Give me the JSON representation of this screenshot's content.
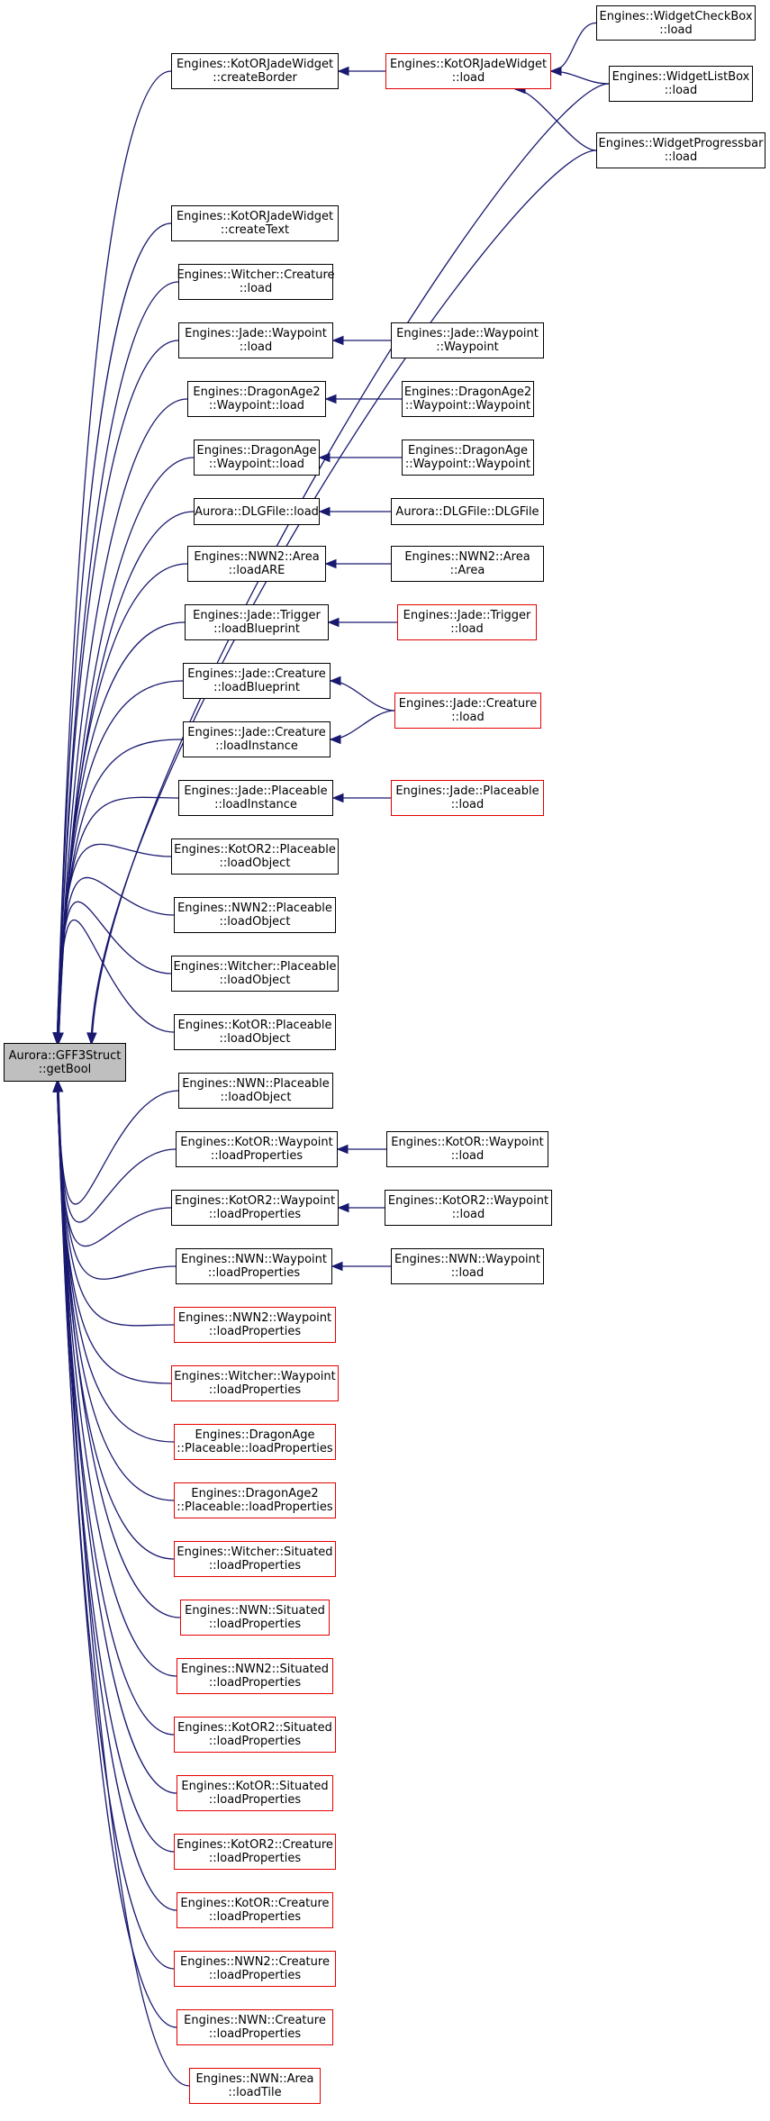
{
  "graph": {
    "root": {
      "id": "root",
      "lines": [
        "Aurora::GFF3Struct",
        "::getBool"
      ],
      "border": "black"
    },
    "nodes": [
      {
        "id": "kcb",
        "lines": [
          "Engines::KotORJadeWidget",
          "::createBorder"
        ],
        "border": "black"
      },
      {
        "id": "kl",
        "lines": [
          "Engines::KotORJadeWidget",
          "::load"
        ],
        "border": "red"
      },
      {
        "id": "wcb",
        "lines": [
          "Engines::WidgetCheckBox",
          "::load"
        ],
        "border": "black"
      },
      {
        "id": "wlb",
        "lines": [
          "Engines::WidgetListBox",
          "::load"
        ],
        "border": "black"
      },
      {
        "id": "wpb",
        "lines": [
          "Engines::WidgetProgressbar",
          "::load"
        ],
        "border": "black"
      },
      {
        "id": "kct",
        "lines": [
          "Engines::KotORJadeWidget",
          "::createText"
        ],
        "border": "black"
      },
      {
        "id": "wcl",
        "lines": [
          "Engines::Witcher::Creature",
          "::load"
        ],
        "border": "black"
      },
      {
        "id": "jwl",
        "lines": [
          "Engines::Jade::Waypoint",
          "::load"
        ],
        "border": "black"
      },
      {
        "id": "jww",
        "lines": [
          "Engines::Jade::Waypoint",
          "::Waypoint"
        ],
        "border": "black"
      },
      {
        "id": "d2wl",
        "lines": [
          "Engines::DragonAge2",
          "::Waypoint::load"
        ],
        "border": "black"
      },
      {
        "id": "d2ww",
        "lines": [
          "Engines::DragonAge2",
          "::Waypoint::Waypoint"
        ],
        "border": "black"
      },
      {
        "id": "dwl",
        "lines": [
          "Engines::DragonAge",
          "::Waypoint::load"
        ],
        "border": "black"
      },
      {
        "id": "dww",
        "lines": [
          "Engines::DragonAge",
          "::Waypoint::Waypoint"
        ],
        "border": "black"
      },
      {
        "id": "dlgl",
        "lines": [
          "Aurora::DLGFile::load"
        ],
        "border": "black"
      },
      {
        "id": "dlgd",
        "lines": [
          "Aurora::DLGFile::DLGFile"
        ],
        "border": "black"
      },
      {
        "id": "n2al",
        "lines": [
          "Engines::NWN2::Area",
          "::loadARE"
        ],
        "border": "black"
      },
      {
        "id": "n2aa",
        "lines": [
          "Engines::NWN2::Area",
          "::Area"
        ],
        "border": "black"
      },
      {
        "id": "jtb",
        "lines": [
          "Engines::Jade::Trigger",
          "::loadBlueprint"
        ],
        "border": "black"
      },
      {
        "id": "jtl",
        "lines": [
          "Engines::Jade::Trigger",
          "::load"
        ],
        "border": "red"
      },
      {
        "id": "jcb",
        "lines": [
          "Engines::Jade::Creature",
          "::loadBlueprint"
        ],
        "border": "black"
      },
      {
        "id": "jcl",
        "lines": [
          "Engines::Jade::Creature",
          "::load"
        ],
        "border": "red"
      },
      {
        "id": "jci",
        "lines": [
          "Engines::Jade::Creature",
          "::loadInstance"
        ],
        "border": "black"
      },
      {
        "id": "jpi",
        "lines": [
          "Engines::Jade::Placeable",
          "::loadInstance"
        ],
        "border": "black"
      },
      {
        "id": "jpl",
        "lines": [
          "Engines::Jade::Placeable",
          "::load"
        ],
        "border": "red"
      },
      {
        "id": "k2po",
        "lines": [
          "Engines::KotOR2::Placeable",
          "::loadObject"
        ],
        "border": "black"
      },
      {
        "id": "n2po",
        "lines": [
          "Engines::NWN2::Placeable",
          "::loadObject"
        ],
        "border": "black"
      },
      {
        "id": "wpo",
        "lines": [
          "Engines::Witcher::Placeable",
          "::loadObject"
        ],
        "border": "black"
      },
      {
        "id": "kpo",
        "lines": [
          "Engines::KotOR::Placeable",
          "::loadObject"
        ],
        "border": "black"
      },
      {
        "id": "npo",
        "lines": [
          "Engines::NWN::Placeable",
          "::loadObject"
        ],
        "border": "black"
      },
      {
        "id": "kwp",
        "lines": [
          "Engines::KotOR::Waypoint",
          "::loadProperties"
        ],
        "border": "black"
      },
      {
        "id": "kwl",
        "lines": [
          "Engines::KotOR::Waypoint",
          "::load"
        ],
        "border": "black"
      },
      {
        "id": "k2wp",
        "lines": [
          "Engines::KotOR2::Waypoint",
          "::loadProperties"
        ],
        "border": "black"
      },
      {
        "id": "k2wl",
        "lines": [
          "Engines::KotOR2::Waypoint",
          "::load"
        ],
        "border": "black"
      },
      {
        "id": "nwp",
        "lines": [
          "Engines::NWN::Waypoint",
          "::loadProperties"
        ],
        "border": "black"
      },
      {
        "id": "nwl",
        "lines": [
          "Engines::NWN::Waypoint",
          "::load"
        ],
        "border": "black"
      },
      {
        "id": "n2wp",
        "lines": [
          "Engines::NWN2::Waypoint",
          "::loadProperties"
        ],
        "border": "red"
      },
      {
        "id": "wwp",
        "lines": [
          "Engines::Witcher::Waypoint",
          "::loadProperties"
        ],
        "border": "red"
      },
      {
        "id": "dpp",
        "lines": [
          "Engines::DragonAge",
          "::Placeable::loadProperties"
        ],
        "border": "red"
      },
      {
        "id": "d2pp",
        "lines": [
          "Engines::DragonAge2",
          "::Placeable::loadProperties"
        ],
        "border": "red"
      },
      {
        "id": "wsp",
        "lines": [
          "Engines::Witcher::Situated",
          "::loadProperties"
        ],
        "border": "red"
      },
      {
        "id": "nsp",
        "lines": [
          "Engines::NWN::Situated",
          "::loadProperties"
        ],
        "border": "red"
      },
      {
        "id": "n2sp",
        "lines": [
          "Engines::NWN2::Situated",
          "::loadProperties"
        ],
        "border": "red"
      },
      {
        "id": "k2sp",
        "lines": [
          "Engines::KotOR2::Situated",
          "::loadProperties"
        ],
        "border": "red"
      },
      {
        "id": "ksp",
        "lines": [
          "Engines::KotOR::Situated",
          "::loadProperties"
        ],
        "border": "red"
      },
      {
        "id": "k2cp",
        "lines": [
          "Engines::KotOR2::Creature",
          "::loadProperties"
        ],
        "border": "red"
      },
      {
        "id": "kcp",
        "lines": [
          "Engines::KotOR::Creature",
          "::loadProperties"
        ],
        "border": "red"
      },
      {
        "id": "n2cp",
        "lines": [
          "Engines::NWN2::Creature",
          "::loadProperties"
        ],
        "border": "red"
      },
      {
        "id": "ncp",
        "lines": [
          "Engines::NWN::Creature",
          "::loadProperties"
        ],
        "border": "red"
      },
      {
        "id": "nat",
        "lines": [
          "Engines::NWN::Area",
          "::loadTile"
        ],
        "border": "red"
      }
    ],
    "edges": [
      [
        "kcb",
        "root"
      ],
      [
        "wlb",
        "root"
      ],
      [
        "wpb",
        "root"
      ],
      [
        "kct",
        "root"
      ],
      [
        "wcl",
        "root"
      ],
      [
        "jwl",
        "root"
      ],
      [
        "d2wl",
        "root"
      ],
      [
        "dwl",
        "root"
      ],
      [
        "dlgl",
        "root"
      ],
      [
        "n2al",
        "root"
      ],
      [
        "jtb",
        "root"
      ],
      [
        "jcb",
        "root"
      ],
      [
        "jci",
        "root"
      ],
      [
        "jpi",
        "root"
      ],
      [
        "k2po",
        "root"
      ],
      [
        "n2po",
        "root"
      ],
      [
        "wpo",
        "root"
      ],
      [
        "kpo",
        "root"
      ],
      [
        "npo",
        "root"
      ],
      [
        "kwp",
        "root"
      ],
      [
        "k2wp",
        "root"
      ],
      [
        "nwp",
        "root"
      ],
      [
        "n2wp",
        "root"
      ],
      [
        "wwp",
        "root"
      ],
      [
        "dpp",
        "root"
      ],
      [
        "d2pp",
        "root"
      ],
      [
        "wsp",
        "root"
      ],
      [
        "nsp",
        "root"
      ],
      [
        "n2sp",
        "root"
      ],
      [
        "k2sp",
        "root"
      ],
      [
        "ksp",
        "root"
      ],
      [
        "k2cp",
        "root"
      ],
      [
        "kcp",
        "root"
      ],
      [
        "n2cp",
        "root"
      ],
      [
        "ncp",
        "root"
      ],
      [
        "nat",
        "root"
      ],
      [
        "kl",
        "kcb"
      ],
      [
        "wcb",
        "kl"
      ],
      [
        "wlb",
        "kl"
      ],
      [
        "wpb",
        "kl"
      ],
      [
        "jww",
        "jwl"
      ],
      [
        "d2ww",
        "d2wl"
      ],
      [
        "dww",
        "dwl"
      ],
      [
        "dlgd",
        "dlgl"
      ],
      [
        "n2aa",
        "n2al"
      ],
      [
        "jtl",
        "jtb"
      ],
      [
        "jcl",
        "jcb"
      ],
      [
        "jcl",
        "jci"
      ],
      [
        "jpl",
        "jpi"
      ],
      [
        "kwl",
        "kwp"
      ],
      [
        "k2wl",
        "k2wp"
      ],
      [
        "nwl",
        "nwp"
      ]
    ]
  }
}
